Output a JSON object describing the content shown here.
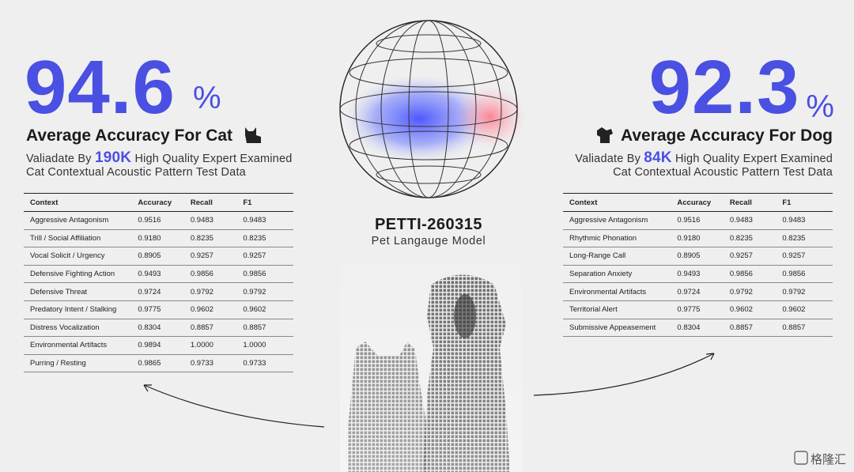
{
  "cat": {
    "score": "94.6",
    "unit": "%",
    "heading": "Average Accuracy For Cat",
    "validated_prefix": "Valiadate By",
    "validated_count": "190K",
    "validated_suffix": "High Quality Expert Examined",
    "validated_line2": "Cat Contextual Acoustic Pattern Test Data",
    "table": {
      "headers": [
        "Context",
        "Accuracy",
        "Recall",
        "F1"
      ],
      "rows": [
        [
          "Aggressive Antagonism",
          "0.9516",
          "0.9483",
          "0.9483"
        ],
        [
          "Trill / Social Affiliation",
          "0.9180",
          "0.8235",
          "0.8235"
        ],
        [
          "Vocal Solicit / Urgency",
          "0.8905",
          "0.9257",
          "0.9257"
        ],
        [
          "Defensive Fighting Action",
          "0.9493",
          "0.9856",
          "0.9856"
        ],
        [
          "Defensive Threat",
          "0.9724",
          "0.9792",
          "0.9792"
        ],
        [
          "Predatory Intent / Stalking",
          "0.9775",
          "0.9602",
          "0.9602"
        ],
        [
          "Distress Vocalization",
          "0.8304",
          "0.8857",
          "0.8857"
        ],
        [
          "Environmental Artifacts",
          "0.9894",
          "1.0000",
          "1.0000"
        ],
        [
          "Purring / Resting",
          "0.9865",
          "0.9733",
          "0.9733"
        ]
      ]
    }
  },
  "dog": {
    "score": "92.3",
    "unit": "%",
    "heading": "Average Accuracy For Dog",
    "validated_prefix": "Valiadate By",
    "validated_count": "84K",
    "validated_suffix": "High Quality Expert Examined",
    "validated_line2": "Cat Contextual Acoustic Pattern Test Data",
    "table": {
      "headers": [
        "Context",
        "Accuracy",
        "Recall",
        "F1"
      ],
      "rows": [
        [
          "Aggressive Antagonism",
          "0.9516",
          "0.9483",
          "0.9483"
        ],
        [
          "Rhythmic Phonation",
          "0.9180",
          "0.8235",
          "0.8235"
        ],
        [
          "Long-Range Call",
          "0.8905",
          "0.9257",
          "0.9257"
        ],
        [
          "Separation Anxiety",
          "0.9493",
          "0.9856",
          "0.9856"
        ],
        [
          "Environmental Artifacts",
          "0.9724",
          "0.9792",
          "0.9792"
        ],
        [
          "Territorial Alert",
          "0.9775",
          "0.9602",
          "0.9602"
        ],
        [
          "Submissive Appeasement",
          "0.8304",
          "0.8857",
          "0.8857"
        ]
      ]
    }
  },
  "model": {
    "name": "PETTI-260315",
    "subtitle": "Pet Langauge Model"
  },
  "watermark": "格隆汇"
}
